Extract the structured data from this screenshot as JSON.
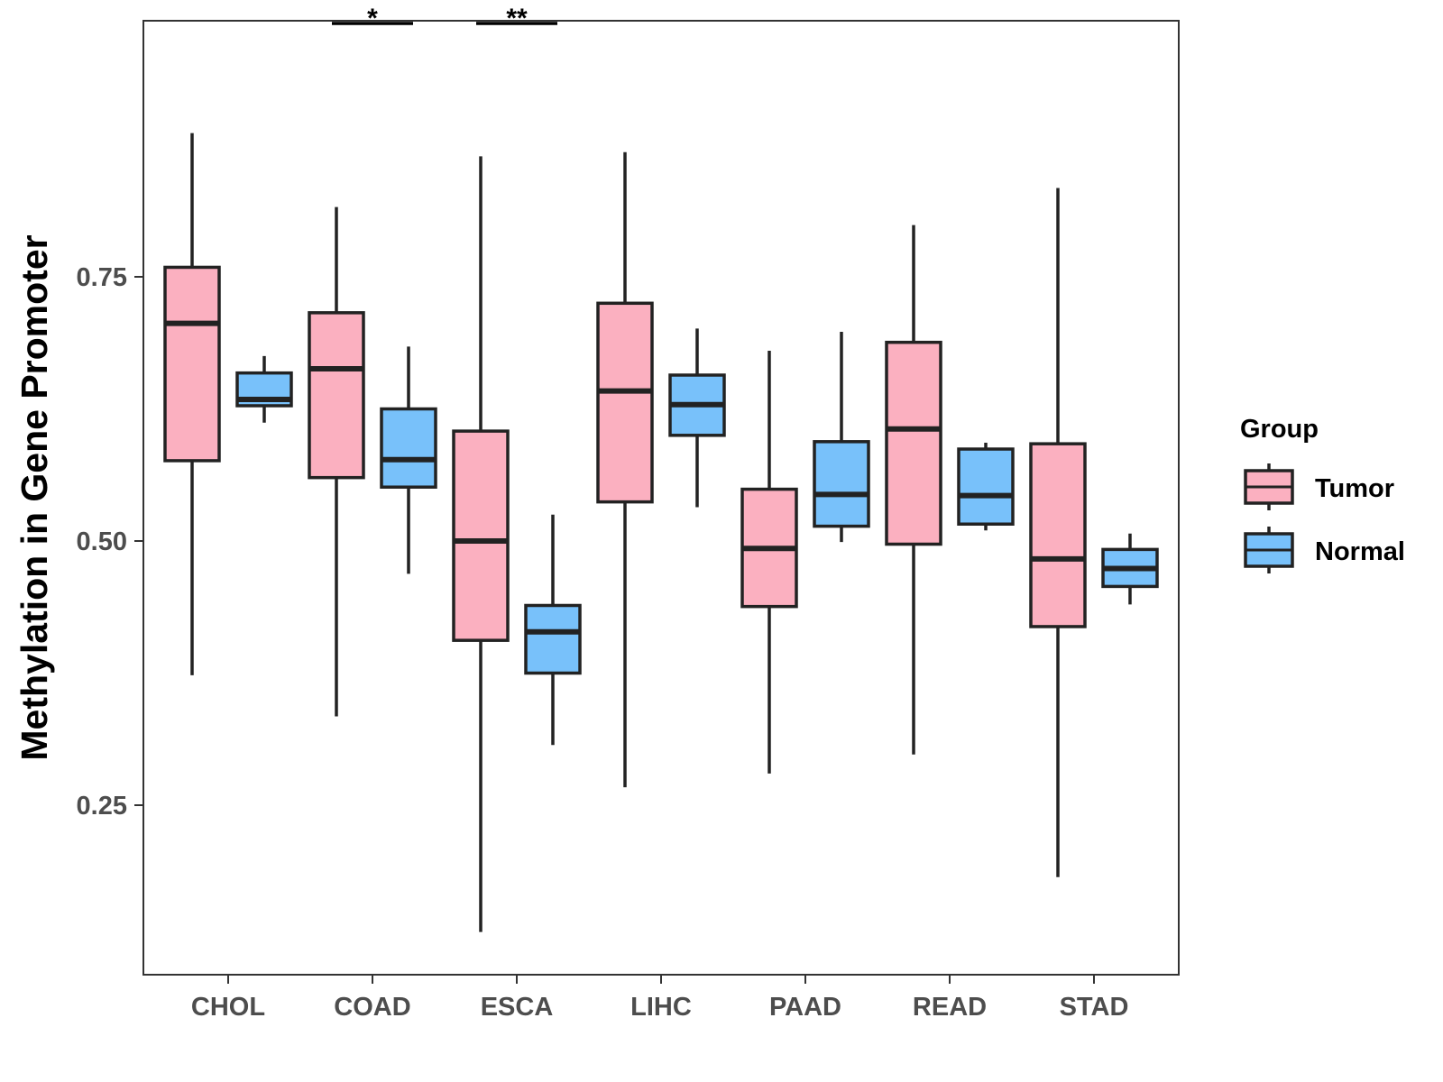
{
  "chart_data": {
    "type": "boxplot",
    "title": "",
    "xlabel": "",
    "ylabel": "Methylation in Gene Promoter",
    "ylim": [
      0.09,
      1.0
    ],
    "yticks": [
      0.25,
      0.5,
      0.75
    ],
    "ytick_labels": [
      "0.25",
      "0.50",
      "0.75"
    ],
    "categories": [
      "CHOL",
      "COAD",
      "ESCA",
      "LIHC",
      "PAAD",
      "READ",
      "STAD"
    ],
    "legend": {
      "title": "Group",
      "position": "right"
    },
    "series": [
      {
        "name": "Tumor",
        "color": "#FBB0C0",
        "boxes": [
          {
            "category": "CHOL",
            "lower_whisker": 0.373,
            "q1": 0.576,
            "median": 0.706,
            "q3": 0.759,
            "upper_whisker": 0.886
          },
          {
            "category": "COAD",
            "lower_whisker": 0.334,
            "q1": 0.56,
            "median": 0.663,
            "q3": 0.716,
            "upper_whisker": 0.816
          },
          {
            "category": "ESCA",
            "lower_whisker": 0.13,
            "q1": 0.406,
            "median": 0.5,
            "q3": 0.604,
            "upper_whisker": 0.864
          },
          {
            "category": "LIHC",
            "lower_whisker": 0.267,
            "q1": 0.537,
            "median": 0.642,
            "q3": 0.725,
            "upper_whisker": 0.868
          },
          {
            "category": "PAAD",
            "lower_whisker": 0.28,
            "q1": 0.438,
            "median": 0.493,
            "q3": 0.549,
            "upper_whisker": 0.68
          },
          {
            "category": "READ",
            "lower_whisker": 0.298,
            "q1": 0.497,
            "median": 0.606,
            "q3": 0.688,
            "upper_whisker": 0.799
          },
          {
            "category": "STAD",
            "lower_whisker": 0.182,
            "q1": 0.419,
            "median": 0.483,
            "q3": 0.592,
            "upper_whisker": 0.834
          }
        ]
      },
      {
        "name": "Normal",
        "color": "#78C1FA",
        "boxes": [
          {
            "category": "CHOL",
            "lower_whisker": 0.612,
            "q1": 0.628,
            "median": 0.634,
            "q3": 0.659,
            "upper_whisker": 0.675
          },
          {
            "category": "COAD",
            "lower_whisker": 0.469,
            "q1": 0.551,
            "median": 0.577,
            "q3": 0.625,
            "upper_whisker": 0.684
          },
          {
            "category": "ESCA",
            "lower_whisker": 0.307,
            "q1": 0.375,
            "median": 0.414,
            "q3": 0.439,
            "upper_whisker": 0.525
          },
          {
            "category": "LIHC",
            "lower_whisker": 0.532,
            "q1": 0.6,
            "median": 0.629,
            "q3": 0.657,
            "upper_whisker": 0.701
          },
          {
            "category": "PAAD",
            "lower_whisker": 0.499,
            "q1": 0.514,
            "median": 0.544,
            "q3": 0.594,
            "upper_whisker": 0.698
          },
          {
            "category": "READ",
            "lower_whisker": 0.51,
            "q1": 0.516,
            "median": 0.543,
            "q3": 0.587,
            "upper_whisker": 0.593
          },
          {
            "category": "STAD",
            "lower_whisker": 0.44,
            "q1": 0.457,
            "median": 0.474,
            "q3": 0.492,
            "upper_whisker": 0.507
          }
        ]
      }
    ],
    "annotations": [
      {
        "category": "COAD",
        "label": "*",
        "y": 0.994
      },
      {
        "category": "ESCA",
        "label": "**",
        "y": 0.994
      }
    ]
  }
}
